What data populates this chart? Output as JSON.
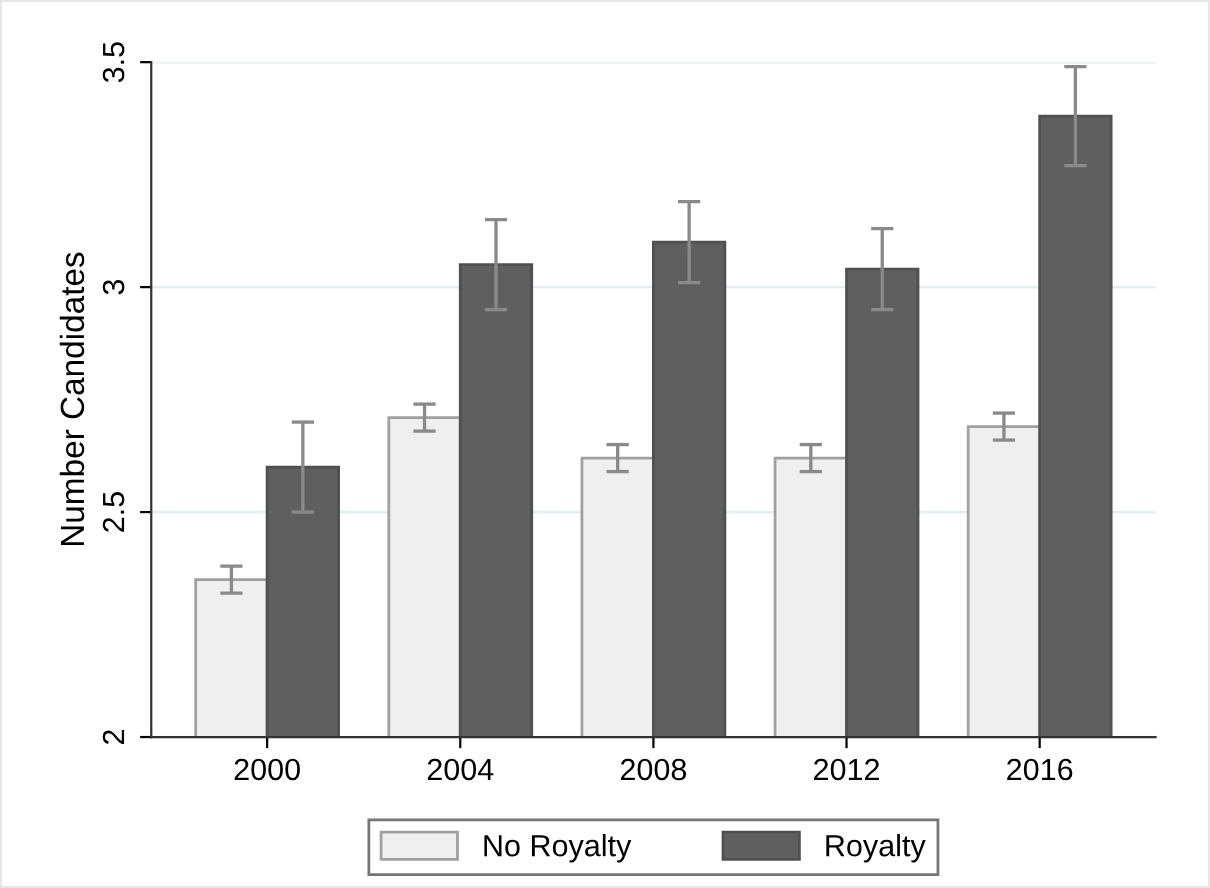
{
  "chart_data": {
    "type": "bar",
    "ylabel": "Number Candidates",
    "categories": [
      "2000",
      "2004",
      "2008",
      "2012",
      "2016"
    ],
    "series": [
      {
        "name": "No Royalty",
        "color": "#efefef",
        "values": [
          2.35,
          2.71,
          2.62,
          2.62,
          2.69
        ],
        "errors": [
          0.03,
          0.03,
          0.03,
          0.03,
          0.03
        ]
      },
      {
        "name": "Royalty",
        "color": "#5f5f5f",
        "values": [
          2.6,
          3.05,
          3.1,
          3.04,
          3.38
        ],
        "errors": [
          0.1,
          0.1,
          0.09,
          0.09,
          0.11
        ]
      }
    ],
    "ylim": [
      2,
      3.5
    ],
    "yticks": [
      2,
      2.5,
      3,
      3.5
    ],
    "grid": "y",
    "legend": "bottom"
  }
}
